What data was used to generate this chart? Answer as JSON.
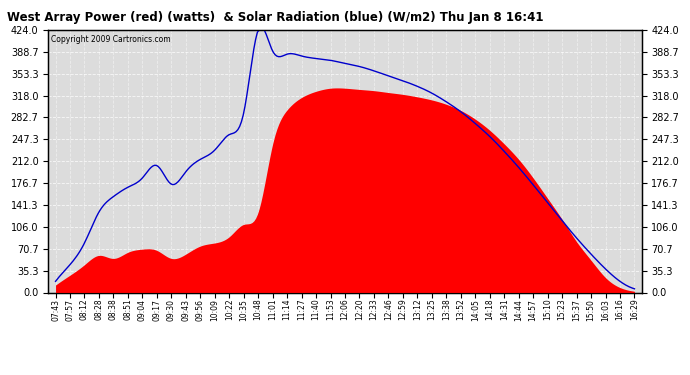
{
  "title": "West Array Power (red) (watts)  & Solar Radiation (blue) (W/m2) Thu Jan 8 16:41",
  "copyright": "Copyright 2009 Cartronics.com",
  "ylim": [
    0.0,
    424.0
  ],
  "yticks": [
    0.0,
    35.3,
    70.7,
    106.0,
    141.3,
    176.7,
    212.0,
    247.3,
    282.7,
    318.0,
    353.3,
    388.7,
    424.0
  ],
  "red_color": "#FF0000",
  "blue_color": "#0000CC",
  "bg_color": "#FFFFFF",
  "plot_bg": "#FFFFFF",
  "x_labels": [
    "07:43",
    "07:57",
    "08:12",
    "08:28",
    "08:38",
    "08:51",
    "09:04",
    "09:17",
    "09:30",
    "09:43",
    "09:56",
    "10:09",
    "10:22",
    "10:35",
    "10:48",
    "11:01",
    "11:14",
    "11:27",
    "11:40",
    "11:53",
    "12:06",
    "12:20",
    "12:33",
    "12:46",
    "12:59",
    "13:12",
    "13:25",
    "13:38",
    "13:52",
    "14:05",
    "14:18",
    "14:31",
    "14:44",
    "14:57",
    "15:10",
    "15:23",
    "15:37",
    "15:50",
    "16:03",
    "16:16",
    "16:29"
  ],
  "solar_vals": [
    18,
    45,
    80,
    130,
    155,
    170,
    185,
    205,
    175,
    195,
    215,
    230,
    255,
    290,
    424,
    390,
    385,
    382,
    378,
    375,
    370,
    365,
    358,
    350,
    342,
    333,
    322,
    308,
    292,
    273,
    252,
    228,
    202,
    174,
    145,
    116,
    88,
    62,
    38,
    18,
    6
  ],
  "power_vals": [
    12,
    28,
    45,
    60,
    55,
    65,
    70,
    68,
    55,
    62,
    75,
    80,
    90,
    110,
    130,
    240,
    295,
    315,
    325,
    330,
    330,
    328,
    326,
    323,
    320,
    316,
    311,
    304,
    294,
    280,
    262,
    240,
    215,
    185,
    152,
    118,
    82,
    52,
    24,
    8,
    2
  ]
}
